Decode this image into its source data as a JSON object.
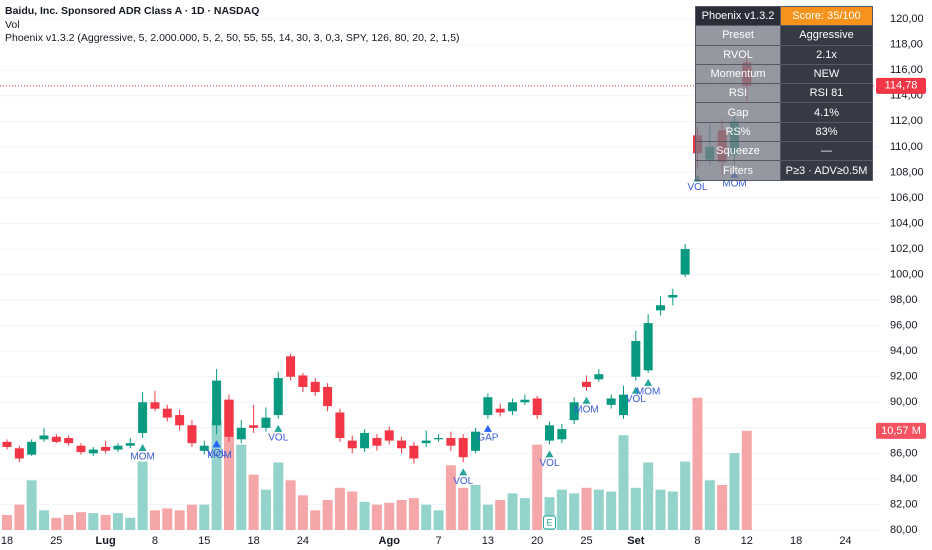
{
  "chart_data": {
    "type": "candlestick",
    "title": "Baidu, Inc. Sponsored ADR Class A · 1D · NASDAQ",
    "legend_lines": [
      "Vol",
      "Phoenix v1.3.2 (Aggressive, 5, 2.000.000, 5, 2, 50, 55, 55, 14, 30, 3, 0,3, SPY, 126, 80, 20, 2, 1,5)"
    ],
    "categories": [
      "18",
      null,
      null,
      null,
      "25",
      null,
      null,
      null,
      "Lug",
      null,
      null,
      null,
      "8",
      null,
      null,
      null,
      "15",
      null,
      null,
      null,
      "18",
      null,
      null,
      null,
      "24",
      null,
      null,
      null,
      null,
      null,
      null,
      "Ago",
      null,
      null,
      null,
      "7",
      null,
      null,
      null,
      "13",
      null,
      null,
      null,
      "20",
      null,
      null,
      null,
      "25",
      null,
      null,
      null,
      "Set",
      null,
      null,
      null,
      null,
      "8",
      null,
      null,
      null,
      "12",
      null,
      null,
      null,
      "18",
      null,
      null,
      null,
      "24"
    ],
    "open": [
      86.9,
      86.4,
      85.9,
      87.1,
      87.3,
      87.2,
      86.6,
      86.0,
      86.5,
      86.3,
      86.6,
      87.6,
      90.0,
      89.5,
      89.0,
      88.2,
      86.2,
      88.2,
      90.2,
      87.1,
      88.2,
      88.0,
      89.0,
      93.6,
      92.1,
      91.6,
      91.2,
      89.2,
      87.0,
      86.4,
      87.2,
      87.8,
      87.0,
      86.6,
      86.8,
      87.1,
      87.2,
      87.2,
      86.2,
      89.0,
      89.5,
      89.3,
      90.0,
      90.3,
      87.0,
      87.1,
      88.6,
      91.6,
      91.8,
      89.8,
      89.0,
      92.0,
      92.5,
      97.2,
      98.2,
      100.0,
      110.9,
      109.0,
      111.3,
      109.4,
      116.6,
      null,
      null,
      null,
      null,
      null,
      null,
      null,
      null
    ],
    "high": [
      87.1,
      86.6,
      87.1,
      88.0,
      87.5,
      87.4,
      86.8,
      86.5,
      87.0,
      86.8,
      87.2,
      90.8,
      90.9,
      89.8,
      89.4,
      88.6,
      87.0,
      92.6,
      90.6,
      88.6,
      89.8,
      89.6,
      92.4,
      93.8,
      92.3,
      91.9,
      91.5,
      89.5,
      87.4,
      87.9,
      87.5,
      88.1,
      87.3,
      86.9,
      87.8,
      87.5,
      87.7,
      87.5,
      88.0,
      90.7,
      89.9,
      90.3,
      90.6,
      90.5,
      88.5,
      88.3,
      90.4,
      92.1,
      92.6,
      90.6,
      91.3,
      95.6,
      96.9,
      98.3,
      98.9,
      102.4,
      111.6,
      111.8,
      112.2,
      112.5,
      117.2,
      null,
      null,
      null,
      null,
      null,
      null,
      null,
      null
    ],
    "low": [
      86.3,
      85.3,
      85.8,
      86.9,
      86.8,
      86.6,
      85.9,
      85.8,
      86.0,
      86.1,
      86.4,
      87.2,
      89.3,
      88.5,
      87.8,
      86.5,
      85.9,
      87.5,
      86.9,
      86.8,
      87.6,
      87.7,
      88.7,
      91.7,
      90.8,
      90.5,
      89.3,
      86.9,
      86.0,
      86.1,
      86.2,
      86.7,
      86.0,
      85.2,
      86.5,
      86.9,
      86.2,
      85.3,
      86.0,
      88.7,
      88.9,
      89.0,
      89.8,
      88.7,
      86.7,
      86.8,
      88.3,
      90.9,
      91.6,
      89.5,
      88.7,
      91.7,
      92.3,
      96.8,
      97.6,
      99.8,
      108.3,
      108.6,
      107.8,
      108.6,
      113.5,
      null,
      null,
      null,
      null,
      null,
      null,
      null,
      null
    ],
    "close": [
      86.5,
      85.6,
      86.9,
      87.4,
      86.9,
      86.8,
      86.1,
      86.3,
      86.2,
      86.6,
      86.8,
      90.0,
      89.5,
      88.8,
      88.2,
      86.8,
      86.6,
      91.7,
      87.3,
      88.0,
      88.0,
      88.8,
      91.9,
      92.0,
      91.2,
      90.8,
      89.7,
      87.2,
      86.4,
      87.6,
      86.6,
      87.0,
      86.4,
      85.6,
      87.0,
      87.2,
      86.6,
      85.7,
      87.7,
      90.4,
      89.2,
      90.0,
      90.2,
      89.0,
      88.2,
      87.9,
      90.0,
      91.2,
      92.2,
      90.3,
      90.6,
      94.8,
      96.2,
      97.6,
      98.4,
      102.0,
      109.5,
      110.0,
      108.8,
      112.0,
      114.78,
      null,
      null,
      null,
      null,
      null,
      null,
      null,
      null
    ],
    "volume": [
      1.6,
      2.7,
      5.3,
      2.1,
      1.3,
      1.6,
      1.9,
      1.8,
      1.6,
      1.8,
      1.3,
      7.3,
      2.1,
      2.3,
      2.1,
      2.7,
      2.7,
      11.7,
      13.9,
      9.1,
      5.9,
      4.3,
      7.2,
      5.3,
      3.7,
      2.1,
      3.2,
      4.5,
      4.1,
      3.0,
      2.7,
      2.9,
      3.2,
      3.4,
      2.7,
      2.1,
      6.9,
      4.5,
      4.8,
      2.7,
      3.2,
      3.9,
      3.4,
      9.1,
      3.5,
      4.3,
      3.9,
      4.5,
      4.3,
      4.1,
      10.1,
      4.5,
      7.2,
      4.3,
      4.1,
      7.3,
      14.1,
      5.3,
      4.8,
      8.2,
      10.57,
      null,
      null,
      null,
      null,
      null,
      null,
      null,
      null
    ],
    "up_color": "#089981",
    "down_color": "#f23645",
    "volume_up_color": "#93d3cc",
    "volume_down_color": "#f5a6a8",
    "ylim": [
      80,
      121.5
    ],
    "volume_lim": [
      0,
      56.5
    ],
    "yticks": [
      {
        "value": 80,
        "label": "80,00"
      },
      {
        "value": 82,
        "label": "82,00"
      },
      {
        "value": 84,
        "label": "84,00"
      },
      {
        "value": 86,
        "label": "86,00"
      },
      {
        "value": 88,
        "label": "88,00"
      },
      {
        "value": 90,
        "label": "90,00"
      },
      {
        "value": 92,
        "label": "92,00"
      },
      {
        "value": 94,
        "label": "94,00"
      },
      {
        "value": 96,
        "label": "96,00"
      },
      {
        "value": 98,
        "label": "98,00"
      },
      {
        "value": 100,
        "label": "100,00"
      },
      {
        "value": 102,
        "label": "102,00"
      },
      {
        "value": 104,
        "label": "104,00"
      },
      {
        "value": 106,
        "label": "106,00"
      },
      {
        "value": 108,
        "label": "108,00"
      },
      {
        "value": 110,
        "label": "110,00"
      },
      {
        "value": 112,
        "label": "112,00"
      },
      {
        "value": 114,
        "label": "114,00"
      },
      {
        "value": 116,
        "label": "116,00"
      },
      {
        "value": 118,
        "label": "118,00"
      },
      {
        "value": 120,
        "label": "120,00"
      }
    ],
    "grid": true,
    "last_price": {
      "value": 114.78,
      "label": "114,78"
    },
    "last_volume": {
      "value": 10.57,
      "label": "10,57 M"
    },
    "signals": [
      {
        "x": 11,
        "label": "MOM",
        "color": "#26a69a"
      },
      {
        "x": 17,
        "label": "VOL",
        "color": "#2962ff"
      },
      {
        "x": 17,
        "label": "MOM",
        "color": "#2962ff"
      },
      {
        "x": 22,
        "label": "VOL",
        "color": "#26a69a"
      },
      {
        "x": 37,
        "label": "VOL",
        "color": "#26a69a"
      },
      {
        "x": 39,
        "label": "GAP",
        "color": "#2962ff"
      },
      {
        "x": 44,
        "label": "VOL",
        "color": "#26a69a"
      },
      {
        "x": 47,
        "label": "MOM",
        "color": "#26a69a"
      },
      {
        "x": 51,
        "label": "VOL",
        "color": "#26a69a"
      },
      {
        "x": 52,
        "label": "MOM",
        "color": "#26a69a"
      },
      {
        "x": 56,
        "label": "VOL",
        "color": "#26a69a"
      },
      {
        "x": 59,
        "label": "MOM",
        "color": "#2962ff"
      }
    ],
    "earnings": {
      "x": 44,
      "label": "E"
    }
  },
  "panel": {
    "header": [
      "Phoenix v1.3.2",
      "Score: 35/100"
    ],
    "rows": [
      [
        "Preset",
        "Aggressive"
      ],
      [
        "RVOL",
        "2.1x"
      ],
      [
        "Momentum",
        "NEW"
      ],
      [
        "RSI",
        "RSI 81"
      ],
      [
        "Gap",
        "4.1%"
      ],
      [
        "RS%",
        "83%"
      ],
      [
        "Squeeze",
        "—"
      ],
      [
        "Filters",
        "P≥3 · ADV≥0.5M"
      ]
    ]
  }
}
